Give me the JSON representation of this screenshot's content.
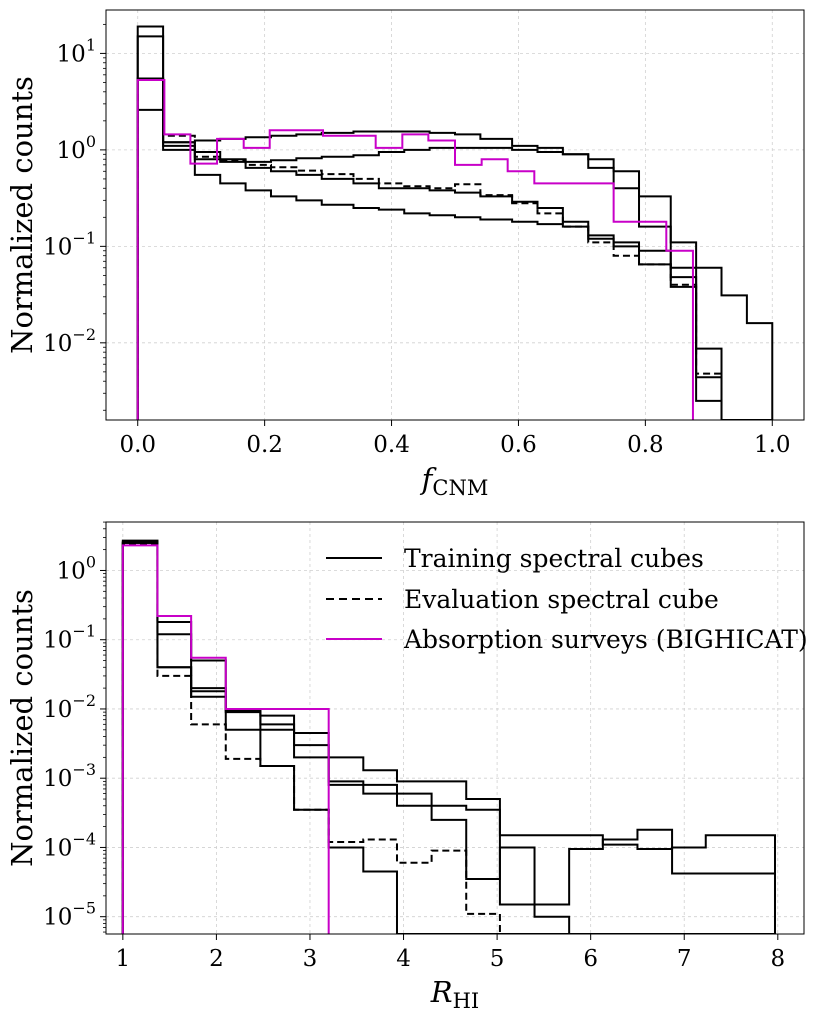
{
  "chart_data": [
    {
      "type": "histogram-step",
      "panel": "top",
      "xlabel": "f",
      "xlabel_sub": "CNM",
      "ylabel": "Normalized counts",
      "xscale": "linear",
      "yscale": "log",
      "xlim": [
        -0.05,
        1.05
      ],
      "ylim_log10": [
        -2.8,
        1.45
      ],
      "grid": true,
      "x_ticks": [
        0.0,
        0.2,
        0.4,
        0.6,
        0.8,
        1.0
      ],
      "x_tick_labels": [
        "0.0",
        "0.2",
        "0.4",
        "0.6",
        "0.8",
        "1.0"
      ],
      "y_ticks_exp": [
        1,
        0,
        -1,
        -2
      ],
      "y_tick_labels": [
        {
          "base": "10",
          "exp": "1"
        },
        {
          "base": "10",
          "exp": "0"
        },
        {
          "base": "10",
          "exp": "−1"
        },
        {
          "base": "10",
          "exp": "−2"
        }
      ],
      "series": [
        {
          "name": "Training spectral cubes",
          "style": "solid",
          "color": "#000000",
          "edges": [
            0,
            0.04,
            0.09,
            0.13,
            0.17,
            0.21,
            0.25,
            0.29,
            0.34,
            0.38,
            0.42,
            0.46,
            0.5,
            0.54,
            0.59,
            0.63,
            0.67,
            0.71,
            0.75,
            0.79,
            0.84,
            0.88,
            0.92,
            0.96,
            1.0
          ],
          "values": [
            19,
            1.0,
            0.55,
            0.45,
            0.38,
            0.33,
            0.3,
            0.27,
            0.25,
            0.24,
            0.22,
            0.21,
            0.2,
            0.19,
            0.18,
            0.17,
            0.16,
            0.13,
            0.11,
            0.09,
            0.048,
            0.0025,
            0.0,
            0.0
          ]
        },
        {
          "name": "Training spectral cubes",
          "style": "solid",
          "color": "#000000",
          "edges": [
            0,
            0.04,
            0.09,
            0.13,
            0.17,
            0.21,
            0.25,
            0.29,
            0.34,
            0.38,
            0.42,
            0.46,
            0.5,
            0.54,
            0.59,
            0.63,
            0.67,
            0.71,
            0.75,
            0.79,
            0.84,
            0.88,
            0.92,
            0.96,
            1.0
          ],
          "values": [
            5.5,
            1.1,
            0.8,
            0.75,
            0.65,
            0.6,
            0.55,
            0.5,
            0.45,
            0.4,
            0.4,
            0.38,
            0.36,
            0.33,
            0.29,
            0.25,
            0.18,
            0.12,
            0.1,
            0.065,
            0.038,
            0.0087,
            0.0,
            0.0
          ]
        },
        {
          "name": "Training spectral cubes",
          "style": "solid",
          "color": "#000000",
          "edges": [
            0,
            0.04,
            0.09,
            0.13,
            0.17,
            0.21,
            0.25,
            0.29,
            0.34,
            0.38,
            0.42,
            0.46,
            0.5,
            0.54,
            0.59,
            0.63,
            0.67,
            0.71,
            0.75,
            0.79,
            0.84,
            0.88,
            0.92,
            0.96,
            1.0
          ],
          "values": [
            15,
            1.2,
            1.25,
            1.3,
            1.35,
            1.4,
            1.45,
            1.5,
            1.55,
            1.55,
            1.55,
            1.5,
            1.45,
            1.3,
            1.1,
            1.05,
            0.9,
            0.65,
            0.4,
            0.16,
            0.06,
            0.0044,
            0.0,
            0.0
          ]
        },
        {
          "name": "Training spectral cubes",
          "style": "solid",
          "color": "#000000",
          "edges": [
            0,
            0.04,
            0.09,
            0.13,
            0.17,
            0.21,
            0.25,
            0.29,
            0.34,
            0.38,
            0.42,
            0.46,
            0.5,
            0.54,
            0.59,
            0.63,
            0.67,
            0.71,
            0.75,
            0.79,
            0.84,
            0.88,
            0.92,
            0.96,
            1.0
          ],
          "values": [
            2.6,
            1.2,
            0.95,
            0.8,
            0.75,
            0.78,
            0.82,
            0.85,
            0.88,
            0.95,
            1.0,
            1.05,
            1.05,
            1.05,
            1.0,
            0.95,
            0.9,
            0.8,
            0.6,
            0.33,
            0.11,
            0.06,
            0.031,
            0.016
          ]
        },
        {
          "name": "Evaluation spectral cube",
          "style": "dashed",
          "color": "#000000",
          "edges": [
            0,
            0.04,
            0.09,
            0.13,
            0.17,
            0.21,
            0.25,
            0.29,
            0.34,
            0.38,
            0.42,
            0.46,
            0.5,
            0.54,
            0.59,
            0.63,
            0.67,
            0.71,
            0.75,
            0.79,
            0.84,
            0.88,
            0.92,
            0.96,
            1.0
          ],
          "values": [
            5.5,
            1.4,
            0.85,
            0.78,
            0.7,
            0.66,
            0.61,
            0.56,
            0.5,
            0.45,
            0.42,
            0.4,
            0.44,
            0.34,
            0.28,
            0.22,
            0.16,
            0.11,
            0.08,
            0.065,
            0.04,
            0.0048,
            0.0,
            0.0
          ]
        },
        {
          "name": "Absorption surveys (BIGHICAT)",
          "style": "solid",
          "color": "#c800c8",
          "edges": [
            0,
            0.042,
            0.083,
            0.125,
            0.167,
            0.208,
            0.25,
            0.292,
            0.333,
            0.375,
            0.417,
            0.458,
            0.5,
            0.542,
            0.583,
            0.625,
            0.667,
            0.708,
            0.75,
            0.792,
            0.833,
            0.875
          ],
          "values": [
            5.3,
            1.45,
            0.72,
            1.3,
            1.05,
            1.6,
            1.6,
            1.4,
            1.4,
            1.05,
            1.45,
            1.25,
            0.7,
            0.8,
            0.6,
            0.45,
            0.45,
            0.45,
            0.18,
            0.18,
            0.09
          ]
        }
      ]
    },
    {
      "type": "histogram-step",
      "panel": "bottom",
      "xlabel": "R",
      "xlabel_sub": "HI",
      "ylabel": "Normalized counts",
      "xscale": "linear",
      "yscale": "log",
      "xlim": [
        0.82,
        8.28
      ],
      "ylim_log10": [
        -5.25,
        0.7
      ],
      "grid": true,
      "x_ticks": [
        1,
        2,
        3,
        4,
        5,
        6,
        7,
        8
      ],
      "x_tick_labels": [
        "1",
        "2",
        "3",
        "4",
        "5",
        "6",
        "7",
        "8"
      ],
      "y_ticks_exp": [
        0,
        -1,
        -2,
        -3,
        -4,
        -5
      ],
      "y_tick_labels": [
        {
          "base": "10",
          "exp": "0"
        },
        {
          "base": "10",
          "exp": "−1"
        },
        {
          "base": "10",
          "exp": "−2"
        },
        {
          "base": "10",
          "exp": "−3"
        },
        {
          "base": "10",
          "exp": "−4"
        },
        {
          "base": "10",
          "exp": "−5"
        }
      ],
      "legend": {
        "position": "top-right",
        "entries": [
          {
            "label": "Training spectral cubes",
            "style": "solid",
            "color": "#000000"
          },
          {
            "label": "Evaluation spectral cube",
            "style": "dashed",
            "color": "#000000"
          },
          {
            "label": "Absorption surveys (BIGHICAT)",
            "style": "solid",
            "color": "#c800c8"
          }
        ]
      },
      "series": [
        {
          "name": "Training spectral cubes",
          "style": "solid",
          "color": "#000000",
          "edges": [
            1,
            1.37,
            1.73,
            2.1,
            2.47,
            2.83,
            3.2,
            3.57,
            3.93,
            4.3,
            4.67,
            5.03,
            5.4,
            5.77,
            6.13,
            6.5,
            6.87,
            7.23,
            7.6,
            7.97
          ],
          "values": [
            2.5,
            0.04,
            0.015,
            0.005,
            0.0015,
            0.00035,
            0.0001,
            4.5e-05,
            0,
            0,
            0,
            0,
            0,
            0,
            0,
            0,
            0,
            0,
            0
          ]
        },
        {
          "name": "Training spectral cubes",
          "style": "solid",
          "color": "#000000",
          "edges": [
            1,
            1.37,
            1.73,
            2.1,
            2.47,
            2.83,
            3.2,
            3.57,
            3.93,
            4.3,
            4.67,
            5.03,
            5.4,
            5.77,
            6.13,
            6.5,
            6.87,
            7.23,
            7.6,
            7.97
          ],
          "values": [
            2.6,
            0.12,
            0.02,
            0.009,
            0.006,
            0.003,
            0.0009,
            0.0008,
            0.0006,
            0.00025,
            3.5e-05,
            0.0001,
            1e-05,
            0,
            0,
            0,
            0,
            0,
            0
          ]
        },
        {
          "name": "Training spectral cubes",
          "style": "solid",
          "color": "#000000",
          "edges": [
            1,
            1.37,
            1.73,
            2.1,
            2.47,
            2.83,
            3.2,
            3.57,
            3.93,
            4.3,
            4.67,
            5.03,
            5.4,
            5.77,
            6.13,
            6.5,
            6.87,
            7.23,
            7.6,
            7.97
          ],
          "values": [
            2.7,
            0.18,
            0.05,
            0.01,
            0.005,
            0.0045,
            0.002,
            0.0013,
            0.0009,
            0.0009,
            0.0005,
            0.00015,
            0.00015,
            0.00015,
            0.00011,
            9.5e-05,
            0.0001,
            0.00015,
            0.00015
          ]
        },
        {
          "name": "Training spectral cubes",
          "style": "solid",
          "color": "#000000",
          "edges": [
            1,
            1.37,
            1.73,
            2.1,
            2.47,
            2.83,
            3.2,
            3.57,
            3.93,
            4.3,
            4.67,
            5.03,
            5.4,
            5.77,
            6.13,
            6.5,
            6.87,
            7.23,
            7.6,
            7.97
          ],
          "values": [
            2.5,
            0.04,
            0.018,
            0.0095,
            0.008,
            0.002,
            0.0008,
            0.0006,
            0.0004,
            0.0004,
            0.00035,
            1.5e-05,
            1.5e-05,
            9.5e-05,
            0.00013,
            0.00018,
            4.2e-05,
            4.2e-05,
            4.2e-05
          ]
        },
        {
          "name": "Evaluation spectral cube",
          "style": "dashed",
          "color": "#000000",
          "edges": [
            1,
            1.37,
            1.73,
            2.1,
            2.47,
            2.83,
            3.2,
            3.57,
            3.93,
            4.3,
            4.67,
            5.03
          ],
          "values": [
            2.4,
            0.03,
            0.006,
            0.0019,
            0.0015,
            0.00035,
            0.00012,
            0.00013,
            6e-05,
            9e-05,
            1.1e-05
          ]
        },
        {
          "name": "Absorption surveys (BIGHICAT)",
          "style": "solid",
          "color": "#c800c8",
          "edges": [
            1,
            1.37,
            1.73,
            2.1,
            2.47,
            2.83,
            3.2
          ],
          "values": [
            2.3,
            0.22,
            0.055,
            0.01,
            0.01,
            0.01
          ]
        }
      ]
    }
  ]
}
